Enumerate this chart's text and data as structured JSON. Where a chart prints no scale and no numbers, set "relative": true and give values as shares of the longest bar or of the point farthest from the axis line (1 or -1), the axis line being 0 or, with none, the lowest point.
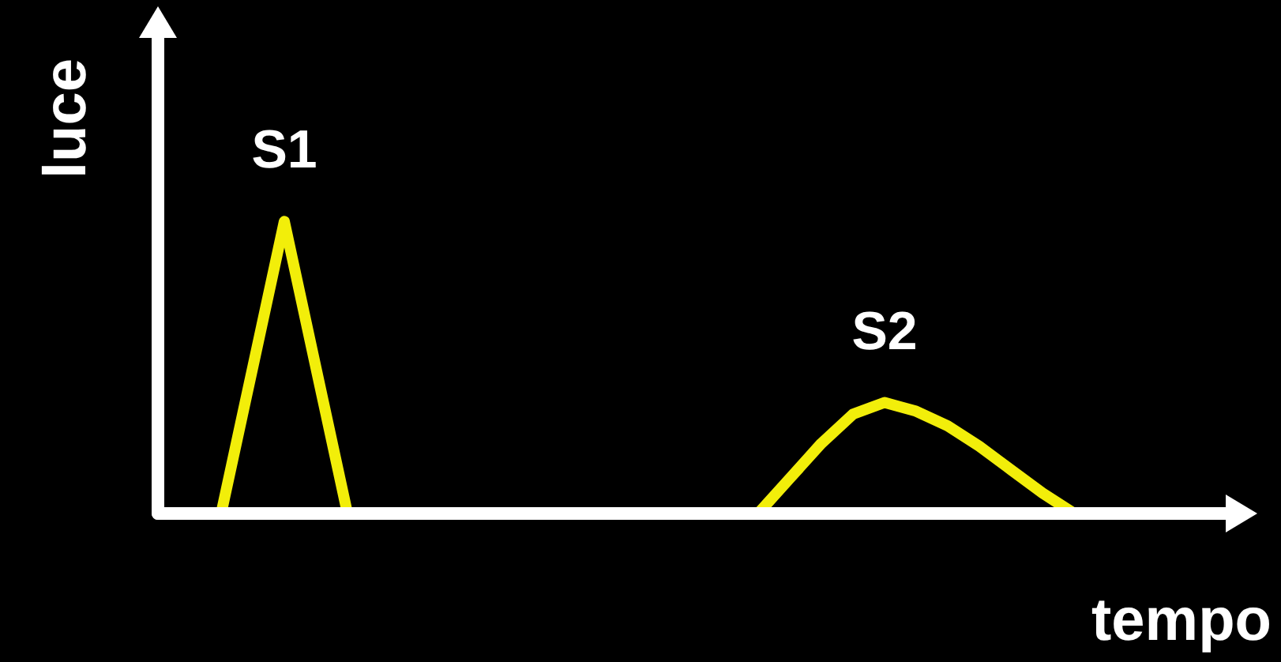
{
  "chart_data": {
    "type": "line",
    "relative": true,
    "xlabel": "tempo",
    "ylabel": "luce",
    "grid": false,
    "line_style": "solid",
    "categories": [
      null,
      null,
      null,
      null,
      null,
      null,
      null,
      null,
      null,
      null,
      null,
      null,
      null,
      null,
      null,
      null,
      null,
      null,
      null,
      null,
      null,
      null,
      null,
      null,
      null,
      null,
      null,
      null,
      null,
      null,
      null,
      null,
      null,
      null,
      null
    ],
    "series": [
      {
        "color": "#f2ee0a",
        "values": [
          null,
          null,
          0,
          0.5,
          1,
          0.5,
          0,
          0,
          0,
          0,
          0,
          0,
          0,
          0,
          0,
          0,
          0,
          0,
          0,
          0,
          0.12,
          0.24,
          0.34,
          0.38,
          0.35,
          0.3,
          0.23,
          0.15,
          0.07,
          0,
          null,
          null,
          null,
          null,
          null
        ]
      }
    ],
    "annotations": [
      "S1",
      "S2"
    ]
  }
}
